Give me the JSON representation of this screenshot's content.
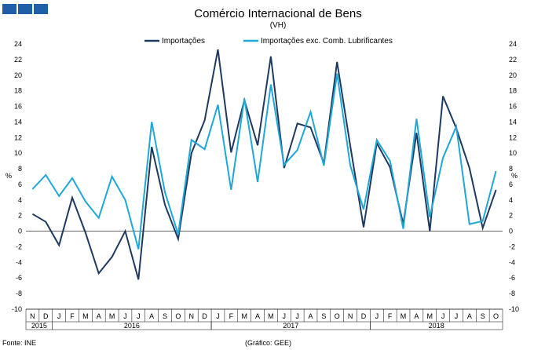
{
  "chart_data": {
    "type": "line",
    "title": "Comércio Internacional de Bens",
    "subtitle": "(VH)",
    "ylabel_left": "%",
    "ylabel_right": "%",
    "ylim": [
      -10,
      24
    ],
    "ytick_step": 2,
    "grid": false,
    "legend_position": "top",
    "x_month_labels": [
      "N",
      "D",
      "J",
      "F",
      "M",
      "A",
      "M",
      "J",
      "J",
      "A",
      "S",
      "O",
      "N",
      "D",
      "J",
      "F",
      "M",
      "A",
      "M",
      "J",
      "J",
      "A",
      "S",
      "O",
      "N",
      "D",
      "J",
      "F",
      "M",
      "A",
      "M",
      "J",
      "J",
      "A",
      "S",
      "O"
    ],
    "year_groups": [
      {
        "label": "2015",
        "months": 2
      },
      {
        "label": "2016",
        "months": 12
      },
      {
        "label": "2017",
        "months": 12
      },
      {
        "label": "2018",
        "months": 10
      }
    ],
    "series": [
      {
        "name": "Importações",
        "color": "#1f3a60",
        "values": [
          2.2,
          1.2,
          -1.8,
          4.3,
          -0.2,
          -5.4,
          -3.3,
          0.0,
          -6.2,
          10.8,
          3.4,
          -1.0,
          10.0,
          14.2,
          23.3,
          10.1,
          16.8,
          11.0,
          22.4,
          8.1,
          13.8,
          13.3,
          8.7,
          21.7,
          10.9,
          0.5,
          11.3,
          8.2,
          0.9,
          12.6,
          0.0,
          17.3,
          13.2,
          8.1,
          0.4,
          5.3
        ]
      },
      {
        "name": "Importações exc. Comb. Lubrificantes",
        "color": "#1fa7d6",
        "values": [
          5.4,
          7.2,
          4.5,
          6.8,
          3.8,
          1.7,
          7.0,
          4.0,
          -2.3,
          14.0,
          5.0,
          -0.4,
          11.7,
          10.5,
          16.2,
          5.3,
          17.0,
          6.3,
          18.8,
          8.5,
          10.4,
          15.3,
          8.4,
          20.2,
          8.4,
          2.8,
          11.7,
          9.0,
          0.3,
          14.4,
          1.8,
          9.4,
          13.4,
          0.9,
          1.3,
          7.7
        ]
      }
    ]
  },
  "header_squares": [
    "#1f5fa8",
    "#1f5fa8",
    "#1f5fa8"
  ],
  "footer": {
    "source": "Fonte: INE",
    "credit": "(Gráfico: GEE)"
  }
}
